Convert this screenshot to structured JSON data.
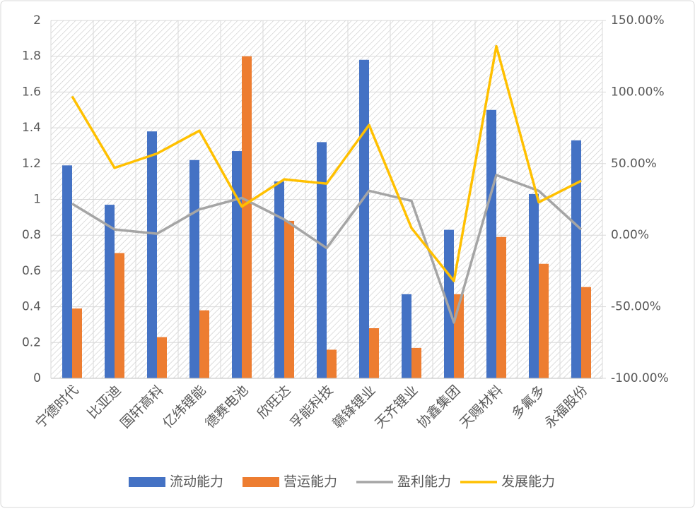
{
  "chart_data": {
    "type": "bar-line",
    "categories": [
      "宁德时代",
      "比亚迪",
      "国轩高科",
      "亿纬锂能",
      "德赛电池",
      "欣旺达",
      "孚能科技",
      "赣锋锂业",
      "天齐锂业",
      "协鑫集团",
      "天赐材料",
      "多氟多",
      "永福股份"
    ],
    "series": [
      {
        "name": "流动能力",
        "color": "#4472c4",
        "type": "bar",
        "values": [
          1.19,
          0.97,
          1.38,
          1.22,
          1.27,
          1.1,
          1.32,
          1.78,
          0.47,
          0.83,
          1.5,
          1.03,
          1.33
        ]
      },
      {
        "name": "营运能力",
        "color": "#ed7d31",
        "type": "bar",
        "values": [
          0.39,
          0.7,
          0.23,
          0.38,
          1.8,
          0.88,
          0.16,
          0.28,
          0.17,
          0.47,
          0.79,
          0.64,
          0.51
        ]
      },
      {
        "name": "盈利能力",
        "color": "#a5a5a5",
        "type": "line",
        "axis": "y2",
        "values": [
          22,
          4,
          1,
          18,
          26,
          11,
          -9,
          31,
          24,
          -61,
          42,
          31,
          4
        ]
      },
      {
        "name": "发展能力",
        "color": "#ffc000",
        "type": "line",
        "axis": "y2",
        "values": [
          97,
          47,
          57,
          73,
          20,
          39,
          36,
          77,
          5,
          -32,
          132,
          23,
          38
        ]
      }
    ],
    "ylim": [
      0,
      2
    ],
    "yticks": [
      0,
      0.2,
      0.4,
      0.6,
      0.8,
      1,
      1.2,
      1.4,
      1.6,
      1.8,
      2
    ],
    "y2lim": [
      -100,
      150
    ],
    "y2ticks": [
      {
        "value": -100,
        "label": "-100.00%"
      },
      {
        "value": -50,
        "label": "-50.00%"
      },
      {
        "value": 0,
        "label": "0.00%"
      },
      {
        "value": 50,
        "label": "50.00%"
      },
      {
        "value": 100,
        "label": "100.00%"
      },
      {
        "value": 150,
        "label": "150.00%"
      }
    ],
    "grid": true,
    "legend": "bottom"
  }
}
